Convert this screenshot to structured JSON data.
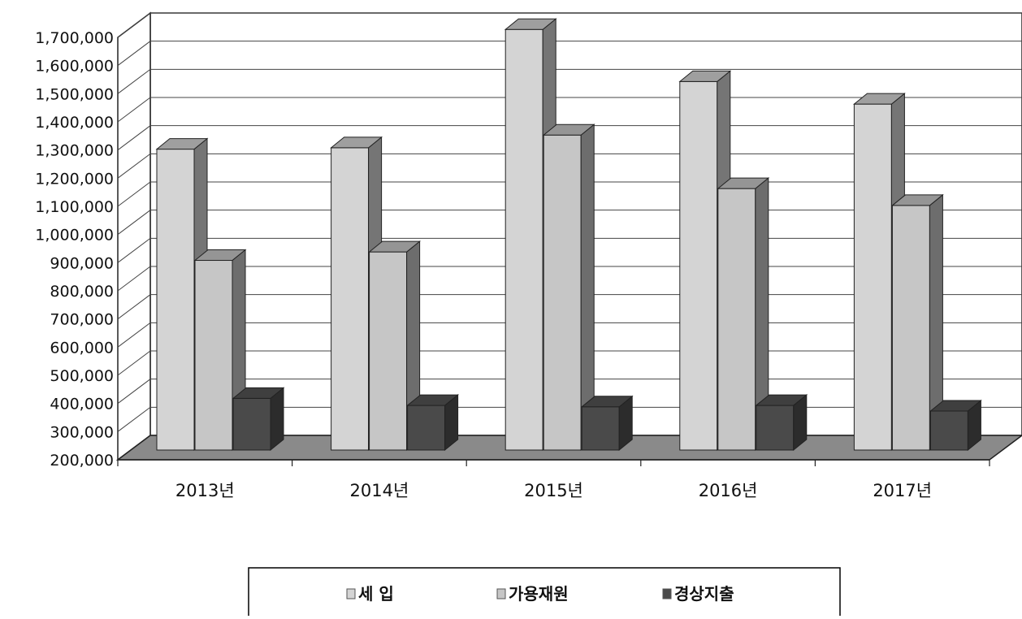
{
  "chart_data": {
    "type": "bar",
    "style": "3d-clustered-column",
    "categories": [
      "2013년",
      "2014년",
      "2015년",
      "2016년",
      "2017년"
    ],
    "series": [
      {
        "name": "세  입",
        "values": [
          1280000,
          1285000,
          1705000,
          1520000,
          1440000
        ],
        "color": "#d4d4d4"
      },
      {
        "name": "가용재원",
        "values": [
          885000,
          915000,
          1330000,
          1140000,
          1080000
        ],
        "color": "#c6c6c6"
      },
      {
        "name": "경상지출",
        "values": [
          395000,
          370000,
          365000,
          370000,
          350000
        ],
        "color": "#4a4a4a"
      }
    ],
    "yticks": [
      "200,000",
      "300,000",
      "400,000",
      "500,000",
      "600,000",
      "700,000",
      "800,000",
      "900,000",
      "1,000,000",
      "1,100,000",
      "1,200,000",
      "1,300,000",
      "1,400,000",
      "1,500,000",
      "1,600,000",
      "1,700,000"
    ],
    "ylim": [
      200000,
      1700000
    ],
    "grid": true,
    "legend_position": "bottom",
    "floor_color": "#8a8a8a"
  }
}
